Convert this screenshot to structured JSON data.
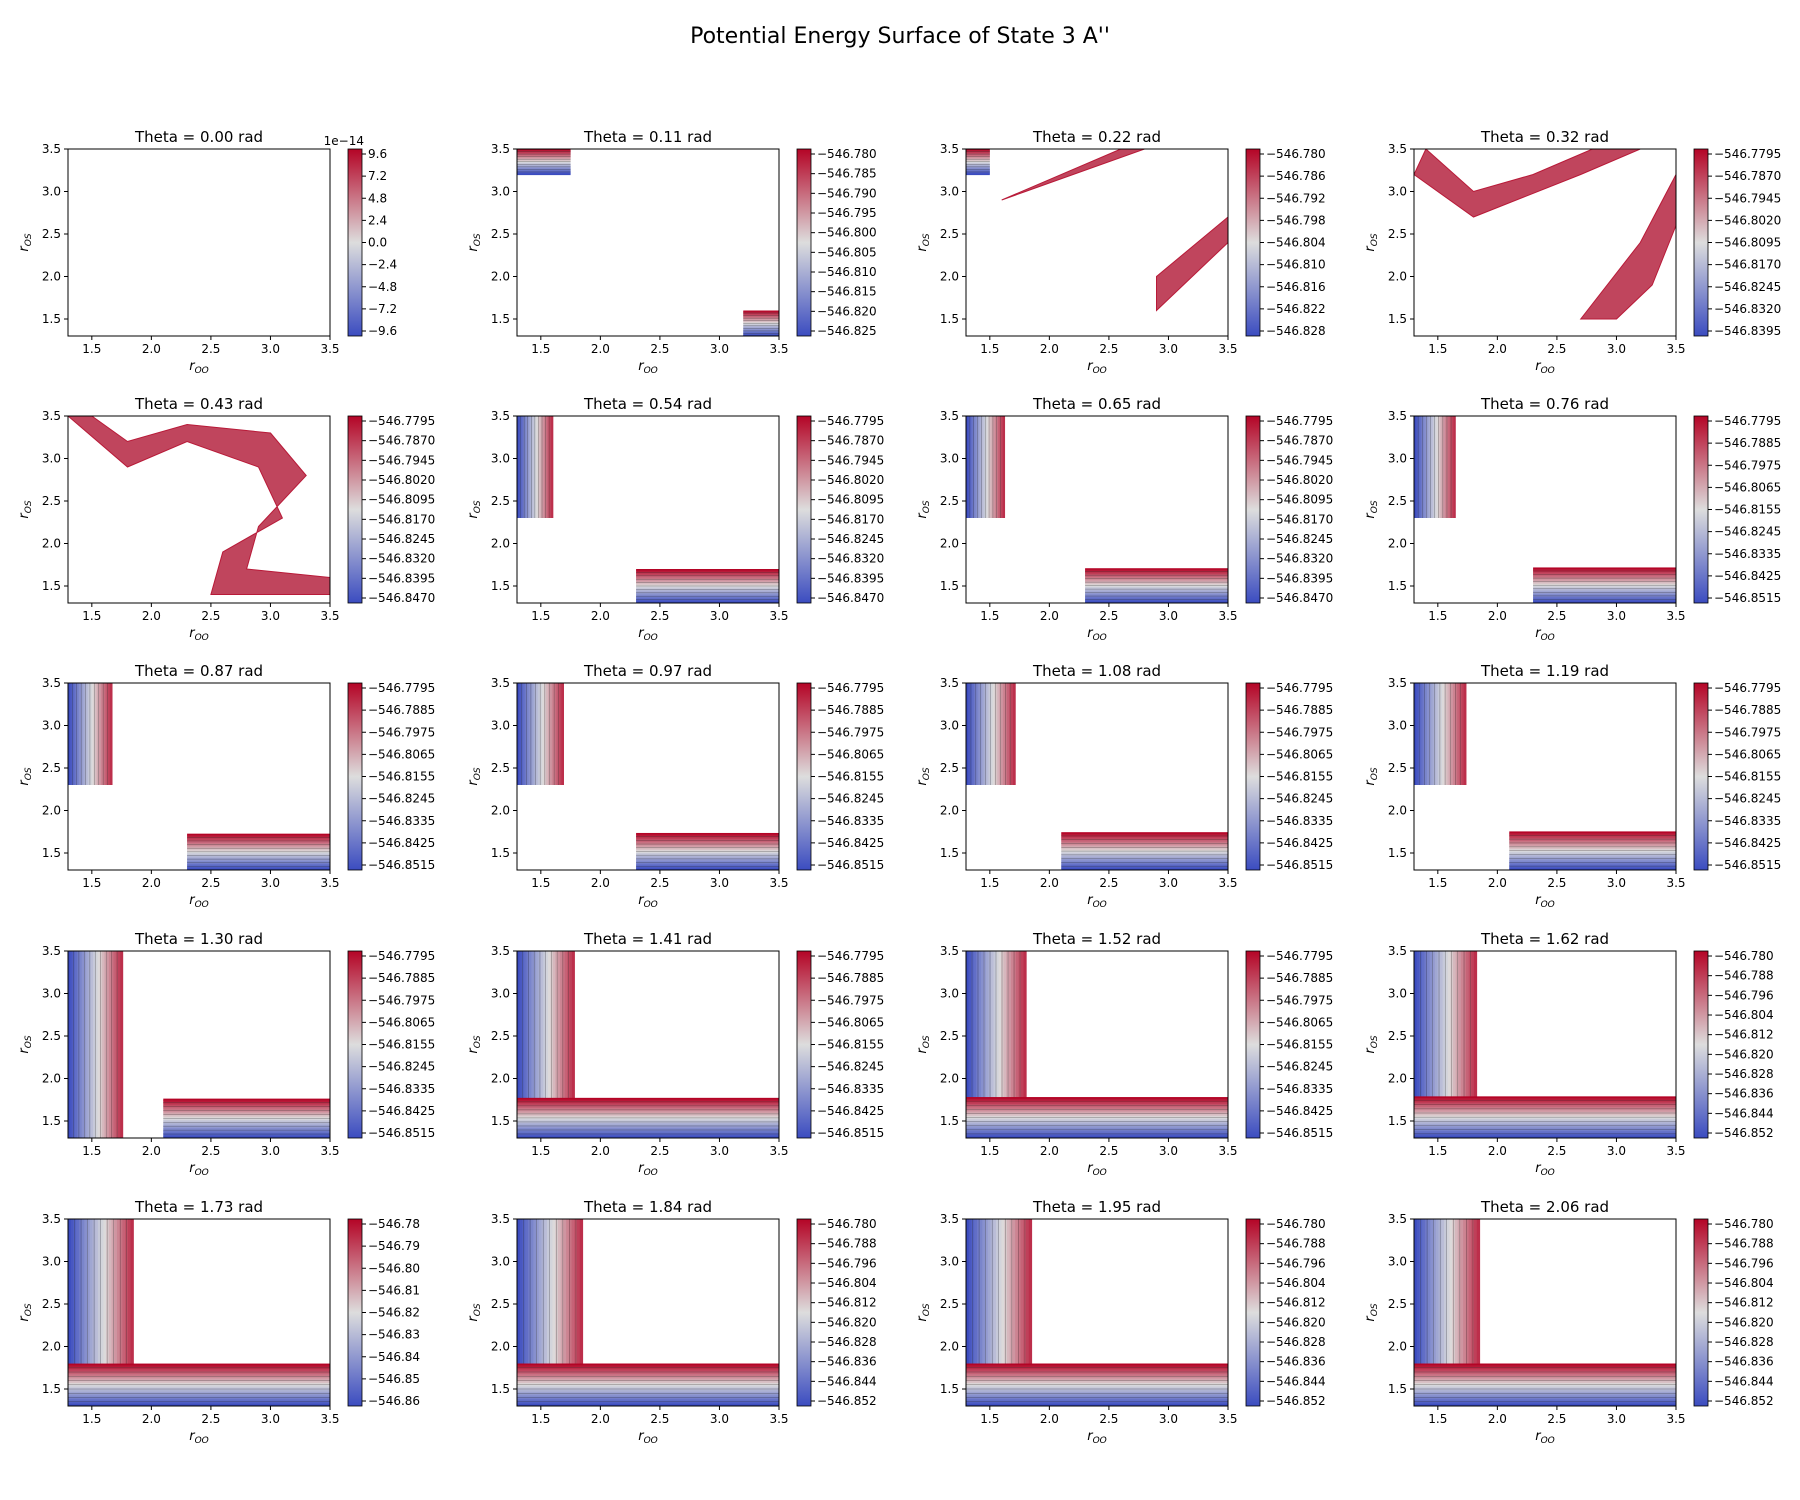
{
  "title": "Potential Energy Surface of State 3 A''",
  "colormap": {
    "name": "coolwarm",
    "low": "#3b4cc0",
    "mid": "#dddddd",
    "high": "#b40426"
  },
  "chart_data": {
    "type": "contour",
    "title": "Potential Energy Surface of State 3 A''",
    "xlabel": "r_OO",
    "ylabel": "r_OS",
    "xlim": [
      1.3,
      3.5
    ],
    "ylim": [
      1.3,
      3.5
    ],
    "x_ticks": [
      "1.5",
      "2.0",
      "2.5",
      "3.0",
      "3.5"
    ],
    "y_ticks": [
      "1.5",
      "2.0",
      "2.5",
      "3.0",
      "3.5"
    ],
    "panels": [
      {
        "theta": 0.0,
        "title": "Theta = 0.00 rad",
        "cbar_offset": "1e−14",
        "cbar_ticks": [
          "9.6",
          "7.2",
          "4.8",
          "2.4",
          "0.0",
          "−2.4",
          "−4.8",
          "−7.2",
          "−9.6"
        ]
      },
      {
        "theta": 0.11,
        "title": "Theta = 0.11 rad",
        "cbar_ticks": [
          "−546.780",
          "−546.785",
          "−546.790",
          "−546.795",
          "−546.800",
          "−546.805",
          "−546.810",
          "−546.815",
          "−546.820",
          "−546.825"
        ]
      },
      {
        "theta": 0.22,
        "title": "Theta = 0.22 rad",
        "cbar_ticks": [
          "−546.780",
          "−546.786",
          "−546.792",
          "−546.798",
          "−546.804",
          "−546.810",
          "−546.816",
          "−546.822",
          "−546.828"
        ]
      },
      {
        "theta": 0.32,
        "title": "Theta = 0.32 rad",
        "cbar_ticks": [
          "−546.7795",
          "−546.7870",
          "−546.7945",
          "−546.8020",
          "−546.8095",
          "−546.8170",
          "−546.8245",
          "−546.8320",
          "−546.8395"
        ]
      },
      {
        "theta": 0.43,
        "title": "Theta = 0.43 rad",
        "cbar_ticks": [
          "−546.7795",
          "−546.7870",
          "−546.7945",
          "−546.8020",
          "−546.8095",
          "−546.8170",
          "−546.8245",
          "−546.8320",
          "−546.8395",
          "−546.8470"
        ]
      },
      {
        "theta": 0.54,
        "title": "Theta = 0.54 rad",
        "cbar_ticks": [
          "−546.7795",
          "−546.7870",
          "−546.7945",
          "−546.8020",
          "−546.8095",
          "−546.8170",
          "−546.8245",
          "−546.8320",
          "−546.8395",
          "−546.8470"
        ]
      },
      {
        "theta": 0.65,
        "title": "Theta = 0.65 rad",
        "cbar_ticks": [
          "−546.7795",
          "−546.7870",
          "−546.7945",
          "−546.8020",
          "−546.8095",
          "−546.8170",
          "−546.8245",
          "−546.8320",
          "−546.8395",
          "−546.8470"
        ]
      },
      {
        "theta": 0.76,
        "title": "Theta = 0.76 rad",
        "cbar_ticks": [
          "−546.7795",
          "−546.7885",
          "−546.7975",
          "−546.8065",
          "−546.8155",
          "−546.8245",
          "−546.8335",
          "−546.8425",
          "−546.8515"
        ]
      },
      {
        "theta": 0.87,
        "title": "Theta = 0.87 rad",
        "cbar_ticks": [
          "−546.7795",
          "−546.7885",
          "−546.7975",
          "−546.8065",
          "−546.8155",
          "−546.8245",
          "−546.8335",
          "−546.8425",
          "−546.8515"
        ]
      },
      {
        "theta": 0.97,
        "title": "Theta = 0.97 rad",
        "cbar_ticks": [
          "−546.7795",
          "−546.7885",
          "−546.7975",
          "−546.8065",
          "−546.8155",
          "−546.8245",
          "−546.8335",
          "−546.8425",
          "−546.8515"
        ]
      },
      {
        "theta": 1.08,
        "title": "Theta = 1.08 rad",
        "cbar_ticks": [
          "−546.7795",
          "−546.7885",
          "−546.7975",
          "−546.8065",
          "−546.8155",
          "−546.8245",
          "−546.8335",
          "−546.8425",
          "−546.8515"
        ]
      },
      {
        "theta": 1.19,
        "title": "Theta = 1.19 rad",
        "cbar_ticks": [
          "−546.7795",
          "−546.7885",
          "−546.7975",
          "−546.8065",
          "−546.8155",
          "−546.8245",
          "−546.8335",
          "−546.8425",
          "−546.8515"
        ]
      },
      {
        "theta": 1.3,
        "title": "Theta = 1.30 rad",
        "cbar_ticks": [
          "−546.7795",
          "−546.7885",
          "−546.7975",
          "−546.8065",
          "−546.8155",
          "−546.8245",
          "−546.8335",
          "−546.8425",
          "−546.8515"
        ]
      },
      {
        "theta": 1.41,
        "title": "Theta = 1.41 rad",
        "cbar_ticks": [
          "−546.7795",
          "−546.7885",
          "−546.7975",
          "−546.8065",
          "−546.8155",
          "−546.8245",
          "−546.8335",
          "−546.8425",
          "−546.8515"
        ]
      },
      {
        "theta": 1.52,
        "title": "Theta = 1.52 rad",
        "cbar_ticks": [
          "−546.7795",
          "−546.7885",
          "−546.7975",
          "−546.8065",
          "−546.8155",
          "−546.8245",
          "−546.8335",
          "−546.8425",
          "−546.8515"
        ]
      },
      {
        "theta": 1.62,
        "title": "Theta = 1.62 rad",
        "cbar_ticks": [
          "−546.780",
          "−546.788",
          "−546.796",
          "−546.804",
          "−546.812",
          "−546.820",
          "−546.828",
          "−546.836",
          "−546.844",
          "−546.852"
        ]
      },
      {
        "theta": 1.73,
        "title": "Theta = 1.73 rad",
        "cbar_ticks": [
          "−546.78",
          "−546.79",
          "−546.80",
          "−546.81",
          "−546.82",
          "−546.83",
          "−546.84",
          "−546.85",
          "−546.86"
        ]
      },
      {
        "theta": 1.84,
        "title": "Theta = 1.84 rad",
        "cbar_ticks": [
          "−546.780",
          "−546.788",
          "−546.796",
          "−546.804",
          "−546.812",
          "−546.820",
          "−546.828",
          "−546.836",
          "−546.844",
          "−546.852"
        ]
      },
      {
        "theta": 1.95,
        "title": "Theta = 1.95 rad",
        "cbar_ticks": [
          "−546.780",
          "−546.788",
          "−546.796",
          "−546.804",
          "−546.812",
          "−546.820",
          "−546.828",
          "−546.836",
          "−546.844",
          "−546.852"
        ]
      },
      {
        "theta": 2.06,
        "title": "Theta = 2.06 rad",
        "cbar_ticks": [
          "−546.780",
          "−546.788",
          "−546.796",
          "−546.804",
          "−546.812",
          "−546.820",
          "−546.828",
          "−546.836",
          "−546.844",
          "−546.852"
        ]
      }
    ]
  }
}
